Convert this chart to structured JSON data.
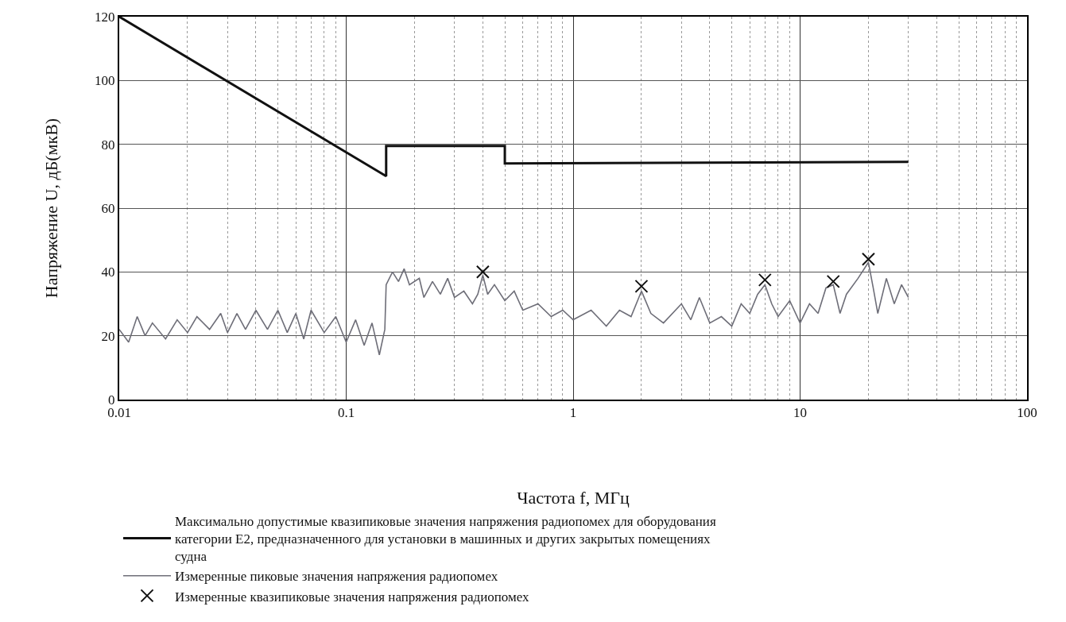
{
  "chart_data": {
    "type": "line",
    "xlabel": "Частота f, МГц",
    "ylabel": "Напряжение U, дБ(мкВ)",
    "log": "x",
    "xlim": [
      0.01,
      100
    ],
    "xticks": [
      0.01,
      0.1,
      1,
      10,
      100
    ],
    "ylim": [
      0,
      120
    ],
    "yticks": [
      0,
      20,
      40,
      60,
      80,
      100,
      120
    ],
    "grid": true,
    "legend": "bottom",
    "line_style": "solid",
    "series": [
      {
        "name": "Максимально допустимые квазипиковые значения напряжения радиопомех для оборудования категории E2, предназначенного для установки в машинных и других закрытых помещениях судна",
        "color": "#111111",
        "marker": "none",
        "x": [
          0.01,
          0.15,
          0.15,
          0.5,
          0.5,
          30
        ],
        "values": [
          120,
          70,
          79.5,
          79.5,
          74,
          74.5
        ]
      },
      {
        "name": "Измеренные пиковые значения напряжения радиопомех",
        "color": "#6e6e78",
        "marker": "none",
        "x": [
          0.01,
          0.011,
          0.012,
          0.013,
          0.014,
          0.016,
          0.018,
          0.02,
          0.022,
          0.025,
          0.028,
          0.03,
          0.033,
          0.036,
          0.04,
          0.045,
          0.05,
          0.055,
          0.06,
          0.065,
          0.07,
          0.08,
          0.09,
          0.1,
          0.11,
          0.12,
          0.13,
          0.14,
          0.148,
          0.15,
          0.16,
          0.17,
          0.18,
          0.19,
          0.21,
          0.22,
          0.24,
          0.26,
          0.28,
          0.3,
          0.33,
          0.36,
          0.38,
          0.4,
          0.42,
          0.45,
          0.5,
          0.55,
          0.6,
          0.7,
          0.8,
          0.9,
          1,
          1.2,
          1.4,
          1.6,
          1.8,
          2,
          2.2,
          2.5,
          3,
          3.3,
          3.6,
          4,
          4.5,
          5,
          5.5,
          6,
          6.5,
          7,
          7.5,
          8,
          9,
          10,
          11,
          12,
          13,
          14,
          15,
          16,
          18,
          20,
          21,
          22,
          24,
          26,
          28,
          30
        ],
        "values": [
          22,
          18,
          26,
          20,
          24,
          19,
          25,
          21,
          26,
          22,
          27,
          21,
          27,
          22,
          28,
          22,
          28,
          21,
          27,
          19,
          28,
          21,
          26,
          18,
          25,
          17,
          24,
          14,
          22,
          36,
          40,
          37,
          41,
          36,
          38,
          32,
          37,
          33,
          38,
          32,
          34,
          30,
          33,
          39,
          33,
          36,
          31,
          34,
          28,
          30,
          26,
          28,
          25,
          28,
          23,
          28,
          26,
          34,
          27,
          24,
          30,
          25,
          32,
          24,
          26,
          23,
          30,
          27,
          33,
          36,
          30,
          26,
          31,
          24,
          30,
          27,
          35,
          36,
          27,
          33,
          38,
          43,
          35,
          27,
          38,
          30,
          36,
          32
        ]
      },
      {
        "name": "Измеренные квазипиковые значения напряжения радиопомех",
        "color": "#111111",
        "type": "scatter",
        "marker": "cross",
        "x": [
          0.4,
          2,
          7,
          14,
          20
        ],
        "values": [
          40,
          35.5,
          37.5,
          37,
          44
        ]
      }
    ]
  }
}
